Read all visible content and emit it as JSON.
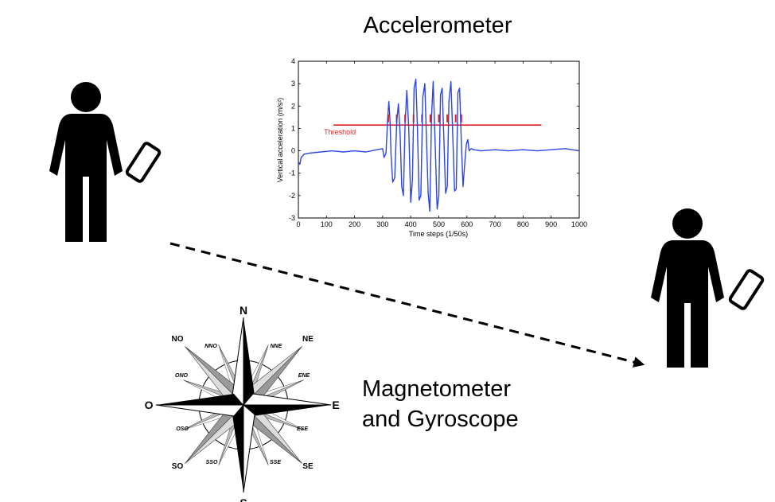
{
  "accelerometer": {
    "title": "Accelerometer"
  },
  "magnetometer": {
    "title_line1": "Magnetometer",
    "title_line2": "and Gyroscope"
  },
  "compass": {
    "cardinal": {
      "n": "N",
      "e": "E",
      "s": "S",
      "w": "O"
    },
    "intercardinal": {
      "ne": "NE",
      "se": "SE",
      "sw": "SO",
      "nw": "NO"
    },
    "secondary": {
      "nne": "NNE",
      "ene": "ENE",
      "ese": "ESE",
      "sse": "SSE",
      "sso": "SSO",
      "oso": "OSO",
      "ono": "ONO",
      "nno": "NNO"
    }
  },
  "colors": {
    "signal": "#2b45e6",
    "threshold": "#e02020",
    "figure": "#000000"
  },
  "chart_data": {
    "type": "line",
    "title": "",
    "xlabel": "Time steps (1/50s)",
    "ylabel": "Vertical acceleration (m/s²)",
    "xlim": [
      0,
      1000
    ],
    "ylim": [
      -3,
      4
    ],
    "xticks": [
      0,
      100,
      200,
      300,
      400,
      500,
      600,
      700,
      800,
      900,
      1000
    ],
    "yticks": [
      -3,
      -2,
      -1,
      0,
      1,
      2,
      3,
      4
    ],
    "grid": false,
    "threshold": {
      "label": "Threshold",
      "value": 1.15,
      "x_range": [
        125,
        865
      ]
    },
    "step_markers": {
      "x": [
        320,
        350,
        380,
        410,
        440,
        470,
        500,
        530,
        560,
        580
      ],
      "y": 1.45
    },
    "series": [
      {
        "x": [
          0,
          5,
          10,
          20,
          40,
          80,
          120,
          160,
          200,
          240,
          280,
          300,
          305,
          312,
          318,
          322,
          326,
          330,
          336,
          343,
          350,
          356,
          362,
          368,
          374,
          380,
          386,
          393,
          400,
          406,
          412,
          418,
          424,
          430,
          436,
          443,
          450,
          456,
          462,
          468,
          474,
          480,
          487,
          494,
          500,
          506,
          512,
          518,
          524,
          530,
          536,
          543,
          550,
          556,
          562,
          568,
          574,
          580,
          586,
          592,
          598,
          603,
          608,
          615,
          625,
          650,
          700,
          750,
          800,
          850,
          900,
          950,
          1000
        ],
        "values": [
          -0.5,
          -0.6,
          -0.3,
          -0.15,
          -0.1,
          -0.05,
          0.0,
          -0.05,
          0.0,
          -0.05,
          0.05,
          0.1,
          -0.3,
          -0.1,
          1.5,
          2.2,
          1.4,
          -0.2,
          -1.4,
          -1.2,
          1.3,
          2.1,
          0.8,
          -1.6,
          -2.0,
          1.2,
          2.7,
          1.0,
          -2.3,
          -1.3,
          2.8,
          3.2,
          0.9,
          -2.2,
          -2.0,
          2.4,
          3.0,
          0.5,
          -1.9,
          -2.7,
          1.5,
          3.1,
          0.3,
          -2.6,
          -2.0,
          2.5,
          2.8,
          0.5,
          -1.9,
          -1.6,
          2.2,
          3.1,
          0.6,
          -1.8,
          -1.7,
          2.6,
          2.8,
          0.5,
          -1.6,
          -0.6,
          0.3,
          0.5,
          0.0,
          0.1,
          0.05,
          0.0,
          0.05,
          0.0,
          0.05,
          0.0,
          0.05,
          0.1,
          0.0
        ]
      }
    ]
  }
}
